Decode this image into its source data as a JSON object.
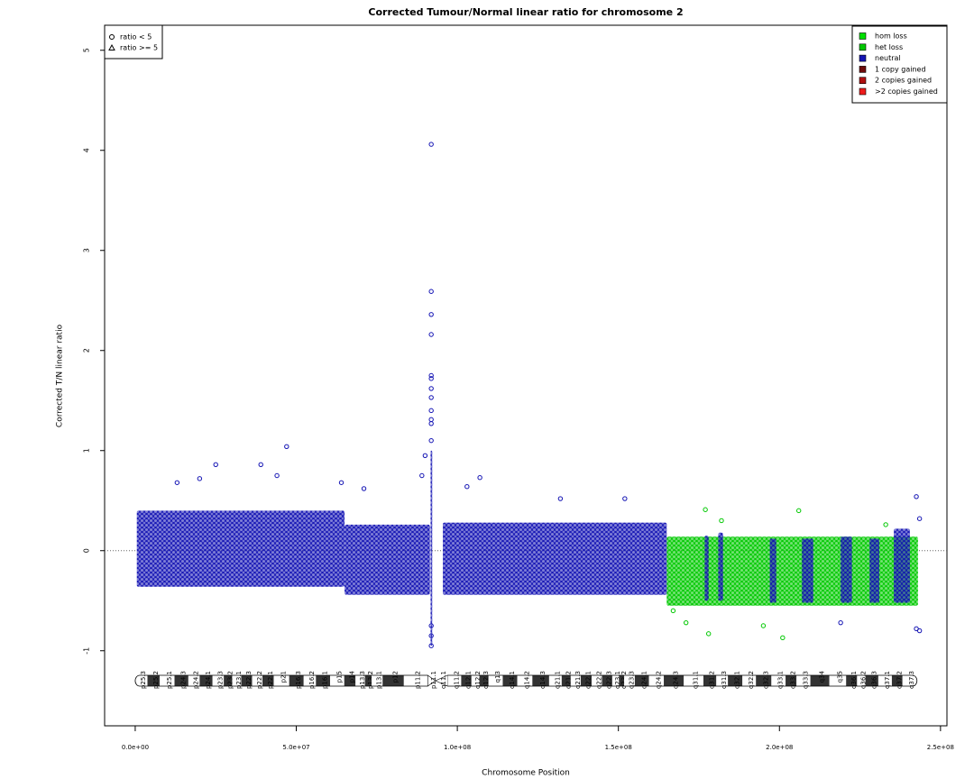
{
  "chart_data": {
    "type": "scatter",
    "title": "Corrected Tumour/Normal linear ratio for chromosome  2",
    "xlabel": "Chromosome Position",
    "ylabel": "Corrected T/N linear ratio",
    "xlim": [
      -9500000,
      252000000
    ],
    "ylim": [
      -1.75,
      5.25
    ],
    "xticks": [
      {
        "value": 0,
        "label": "0.0e+00"
      },
      {
        "value": 50000000,
        "label": "5.0e+07"
      },
      {
        "value": 100000000,
        "label": "1.0e+08"
      },
      {
        "value": 150000000,
        "label": "1.5e+08"
      },
      {
        "value": 200000000,
        "label": "2.0e+08"
      },
      {
        "value": 250000000,
        "label": "2.5e+08"
      }
    ],
    "yticks": [
      -1,
      0,
      1,
      2,
      3,
      4,
      5
    ],
    "hline": 0,
    "shape_legend": {
      "location": "top left",
      "labels": [
        "ratio < 5",
        "ratio >= 5"
      ]
    },
    "legend": "top right",
    "series": [
      {
        "name": "hom loss",
        "color": "#00e000",
        "x": [],
        "values": [],
        "regions": []
      },
      {
        "name": "het loss",
        "color": "#00c800",
        "x": [
          177000000,
          182000000,
          206000000,
          195000000,
          178000000,
          201000000,
          171000000,
          233000000,
          167000000
        ],
        "values": [
          0.41,
          0.3,
          0.4,
          -0.75,
          -0.83,
          -0.87,
          -0.72,
          0.26,
          -0.6
        ],
        "regions": [
          {
            "start": 165000000,
            "end": 243000000,
            "low": -0.55,
            "high": 0.14
          }
        ]
      },
      {
        "name": "neutral",
        "color": "#1414b4",
        "x": [
          47000000,
          25000000,
          39000000,
          44000000,
          20000000,
          13000000,
          107000000,
          103000000,
          91900000,
          91900000,
          91900000,
          91900000,
          91900000,
          91900000,
          91900000,
          91900000,
          91900000,
          91900000,
          91900000,
          91900000,
          91900000,
          91900000,
          91900000,
          90000000,
          89000000,
          152000000,
          132000000,
          242500000,
          243500000,
          242500000,
          243500000,
          219000000,
          71000000,
          64000000
        ],
        "values": [
          1.04,
          0.86,
          0.86,
          0.75,
          0.72,
          0.68,
          0.73,
          0.64,
          4.06,
          2.59,
          2.36,
          2.16,
          1.75,
          1.72,
          1.62,
          1.53,
          1.4,
          1.31,
          1.27,
          1.1,
          -0.95,
          -0.85,
          -0.75,
          0.95,
          0.75,
          0.52,
          0.52,
          0.54,
          0.32,
          -0.78,
          -0.8,
          -0.72,
          0.62,
          0.68
        ],
        "regions": [
          {
            "start": 500000,
            "end": 65000000,
            "low": -0.36,
            "high": 0.4
          },
          {
            "start": 65000000,
            "end": 91500000,
            "low": -0.44,
            "high": 0.26
          },
          {
            "start": 91700000,
            "end": 92200000,
            "low": -0.95,
            "high": 1.0
          },
          {
            "start": 95500000,
            "end": 165000000,
            "low": -0.44,
            "high": 0.28
          },
          {
            "start": 176800000,
            "end": 178000000,
            "low": -0.5,
            "high": 0.15
          },
          {
            "start": 181000000,
            "end": 182500000,
            "low": -0.5,
            "high": 0.18
          },
          {
            "start": 197000000,
            "end": 199000000,
            "low": -0.52,
            "high": 0.12
          },
          {
            "start": 207000000,
            "end": 210500000,
            "low": -0.52,
            "high": 0.12
          },
          {
            "start": 219000000,
            "end": 222500000,
            "low": -0.52,
            "high": 0.14
          },
          {
            "start": 228000000,
            "end": 231000000,
            "low": -0.52,
            "high": 0.12
          },
          {
            "start": 235500000,
            "end": 240500000,
            "low": -0.52,
            "high": 0.22
          }
        ]
      },
      {
        "name": "1 copy gained",
        "color": "#6e0b0b",
        "x": [],
        "values": [],
        "regions": []
      },
      {
        "name": "2 copies gained",
        "color": "#b01010",
        "x": [],
        "values": [],
        "regions": []
      },
      {
        "name": ">2 copies gained",
        "color": "#ee1c1c",
        "x": [],
        "values": [],
        "regions": []
      }
    ],
    "bands": [
      {
        "name": "p25.3",
        "end": 3800000,
        "stain": "gneg"
      },
      {
        "name": "p25.2",
        "end": 7600000,
        "stain": "gpos"
      },
      {
        "name": "p25.1",
        "end": 12200000,
        "stain": "gneg"
      },
      {
        "name": "p24.3",
        "end": 16500000,
        "stain": "gpos"
      },
      {
        "name": "p24.2",
        "end": 20000000,
        "stain": "gneg"
      },
      {
        "name": "p24.1",
        "end": 24000000,
        "stain": "gpos"
      },
      {
        "name": "p23.3",
        "end": 27500000,
        "stain": "gneg"
      },
      {
        "name": "p23.2",
        "end": 30100000,
        "stain": "gpos"
      },
      {
        "name": "p23.1",
        "end": 32900000,
        "stain": "gneg"
      },
      {
        "name": "p22.3",
        "end": 36300000,
        "stain": "gpos"
      },
      {
        "name": "p22.2",
        "end": 39500000,
        "stain": "gneg"
      },
      {
        "name": "p22.1",
        "end": 43000000,
        "stain": "gpos"
      },
      {
        "name": "p21",
        "end": 47800000,
        "stain": "gneg"
      },
      {
        "name": "p16.3",
        "end": 52300000,
        "stain": "gpos"
      },
      {
        "name": "p16.2",
        "end": 56100000,
        "stain": "gneg"
      },
      {
        "name": "p16.1",
        "end": 60500000,
        "stain": "gpos"
      },
      {
        "name": "p15",
        "end": 64900000,
        "stain": "gneg"
      },
      {
        "name": "p14",
        "end": 68400000,
        "stain": "gpos"
      },
      {
        "name": "p13.3",
        "end": 71300000,
        "stain": "gneg"
      },
      {
        "name": "p13.2",
        "end": 73400000,
        "stain": "gpos"
      },
      {
        "name": "p13.1",
        "end": 76800000,
        "stain": "gneg"
      },
      {
        "name": "p12",
        "end": 83400000,
        "stain": "gpos"
      },
      {
        "name": "p11.2",
        "end": 90800000,
        "stain": "gneg"
      },
      {
        "name": "p11.1",
        "end": 93200000,
        "stain": "acen"
      },
      {
        "name": "q11.1",
        "end": 97000000,
        "stain": "acen"
      },
      {
        "name": "q11.2",
        "end": 101200000,
        "stain": "gneg"
      },
      {
        "name": "q12.1",
        "end": 104400000,
        "stain": "gpos"
      },
      {
        "name": "q12.2",
        "end": 106900000,
        "stain": "gneg"
      },
      {
        "name": "q12.3",
        "end": 109700000,
        "stain": "gpos"
      },
      {
        "name": "q13",
        "end": 114100000,
        "stain": "gneg"
      },
      {
        "name": "q14.1",
        "end": 118600000,
        "stain": "gpos"
      },
      {
        "name": "q14.2",
        "end": 123300000,
        "stain": "gneg"
      },
      {
        "name": "q14.3",
        "end": 128500000,
        "stain": "gpos"
      },
      {
        "name": "q21.1",
        "end": 132400000,
        "stain": "gneg"
      },
      {
        "name": "q21.2",
        "end": 135200000,
        "stain": "gpos"
      },
      {
        "name": "q21.3",
        "end": 138300000,
        "stain": "gneg"
      },
      {
        "name": "q22.1",
        "end": 141700000,
        "stain": "gpos"
      },
      {
        "name": "q22.2",
        "end": 144900000,
        "stain": "gneg"
      },
      {
        "name": "q22.3",
        "end": 148100000,
        "stain": "gpos"
      },
      {
        "name": "q23.1",
        "end": 150200000,
        "stain": "gneg"
      },
      {
        "name": "q23.2",
        "end": 151800000,
        "stain": "gpos"
      },
      {
        "name": "q23.3",
        "end": 155100000,
        "stain": "gneg"
      },
      {
        "name": "q24.1",
        "end": 159500000,
        "stain": "gpos"
      },
      {
        "name": "q24.2",
        "end": 164100000,
        "stain": "gneg"
      },
      {
        "name": "q24.3",
        "end": 170300000,
        "stain": "gpos"
      },
      {
        "name": "q31.1",
        "end": 176400000,
        "stain": "gneg"
      },
      {
        "name": "q31.2",
        "end": 180400000,
        "stain": "gpos"
      },
      {
        "name": "q31.3",
        "end": 184000000,
        "stain": "gneg"
      },
      {
        "name": "q32.1",
        "end": 188500000,
        "stain": "gpos"
      },
      {
        "name": "q32.2",
        "end": 192700000,
        "stain": "gneg"
      },
      {
        "name": "q32.3",
        "end": 197500000,
        "stain": "gpos"
      },
      {
        "name": "q33.1",
        "end": 201900000,
        "stain": "gneg"
      },
      {
        "name": "q33.2",
        "end": 205300000,
        "stain": "gpos"
      },
      {
        "name": "q33.3",
        "end": 209600000,
        "stain": "gneg"
      },
      {
        "name": "q34",
        "end": 215500000,
        "stain": "gpos"
      },
      {
        "name": "q35",
        "end": 220700000,
        "stain": "gneg"
      },
      {
        "name": "q36.1",
        "end": 224100000,
        "stain": "gpos"
      },
      {
        "name": "q36.2",
        "end": 226700000,
        "stain": "gneg"
      },
      {
        "name": "q36.3",
        "end": 230700000,
        "stain": "gpos"
      },
      {
        "name": "q37.1",
        "end": 234900000,
        "stain": "gneg"
      },
      {
        "name": "q37.2",
        "end": 238200000,
        "stain": "gpos"
      },
      {
        "name": "q37.3",
        "end": 242700000,
        "stain": "gneg"
      }
    ]
  }
}
